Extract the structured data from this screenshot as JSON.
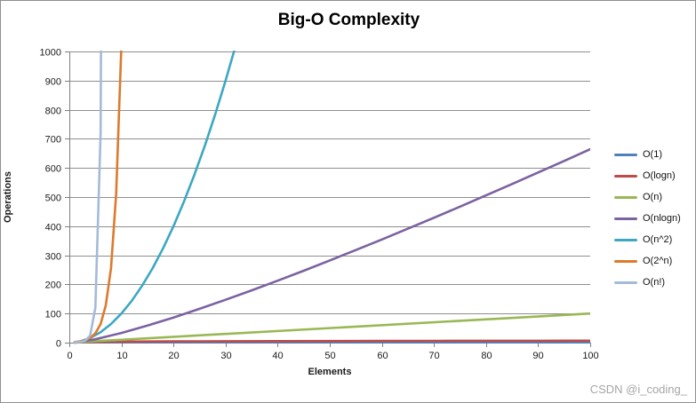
{
  "watermark": "CSDN @i_coding_",
  "chart_data": {
    "type": "line",
    "title": "Big-O Complexity",
    "xlabel": "Elements",
    "ylabel": "Operations",
    "xlim": [
      0,
      100
    ],
    "ylim": [
      0,
      1000
    ],
    "x_ticks": [
      0,
      10,
      20,
      30,
      40,
      50,
      60,
      70,
      80,
      90,
      100
    ],
    "y_ticks": [
      0,
      100,
      200,
      300,
      400,
      500,
      600,
      700,
      800,
      900,
      1000
    ],
    "grid": "horizontal",
    "grid_color": "#8f8f8f",
    "axis_color": "#7f7f7f",
    "tick_label_color": "#1a1a1a",
    "legend_position": "right",
    "series": [
      {
        "name": "O(1)",
        "color": "#4F81BD",
        "formula": "constant",
        "x": [
          1,
          100
        ],
        "y": [
          1,
          1
        ]
      },
      {
        "name": "O(logn)",
        "color": "#BE4B48",
        "formula": "log2(n)",
        "x": [
          1,
          2,
          3,
          4,
          5,
          6,
          8,
          10,
          15,
          20,
          25,
          30,
          40,
          50,
          60,
          70,
          80,
          90,
          100
        ],
        "y": [
          0,
          1,
          1.58,
          2,
          2.32,
          2.58,
          3,
          3.32,
          3.91,
          4.32,
          4.64,
          4.91,
          5.32,
          5.64,
          5.91,
          6.13,
          6.32,
          6.49,
          6.64
        ]
      },
      {
        "name": "O(n)",
        "color": "#98B855",
        "formula": "n",
        "x": [
          1,
          100
        ],
        "y": [
          1,
          100
        ]
      },
      {
        "name": "O(nlogn)",
        "color": "#7C62A0",
        "formula": "n*log2(n)",
        "x": [
          1,
          5,
          10,
          15,
          20,
          25,
          30,
          35,
          40,
          45,
          50,
          55,
          60,
          65,
          70,
          75,
          80,
          85,
          90,
          95,
          100
        ],
        "y": [
          0,
          11.6,
          33.2,
          58.6,
          86.4,
          116.1,
          147.2,
          179.5,
          212.9,
          247.1,
          282.2,
          318,
          354.4,
          391.4,
          429,
          467.1,
          505.8,
          544.8,
          584.3,
          624.2,
          664.4
        ]
      },
      {
        "name": "O(n^2)",
        "color": "#3EA7C2",
        "formula": "n^2",
        "x": [
          1,
          2,
          4,
          6,
          8,
          10,
          12,
          14,
          16,
          18,
          20,
          22,
          24,
          26,
          28,
          30,
          32
        ],
        "y": [
          1,
          4,
          16,
          36,
          64,
          100,
          144,
          196,
          256,
          324,
          400,
          484,
          576,
          676,
          784,
          900,
          1024
        ]
      },
      {
        "name": "O(2^n)",
        "color": "#DC7A2D",
        "formula": "2^n",
        "x": [
          1,
          2,
          3,
          4,
          5,
          6,
          7,
          8,
          9,
          10
        ],
        "y": [
          2,
          4,
          8,
          16,
          32,
          64,
          128,
          256,
          512,
          1024
        ]
      },
      {
        "name": "O(n!)",
        "color": "#A4BAD9",
        "formula": "n!",
        "x": [
          1,
          2,
          3,
          4,
          5,
          6,
          7
        ],
        "y": [
          1,
          2,
          6,
          24,
          120,
          720,
          5040
        ]
      }
    ]
  }
}
